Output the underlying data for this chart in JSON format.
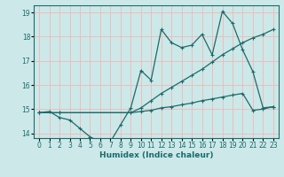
{
  "xlabel": "Humidex (Indice chaleur)",
  "bg_color": "#cde8e8",
  "grid_color": "#f0b8b8",
  "line_color": "#1a6b6b",
  "xlim": [
    -0.5,
    23.5
  ],
  "ylim": [
    13.8,
    19.3
  ],
  "xticks": [
    0,
    1,
    2,
    3,
    4,
    5,
    6,
    7,
    8,
    9,
    10,
    11,
    12,
    13,
    14,
    15,
    16,
    17,
    18,
    19,
    20,
    21,
    22,
    23
  ],
  "yticks": [
    14,
    15,
    16,
    17,
    18,
    19
  ],
  "line1_x": [
    0,
    1,
    2,
    3,
    4,
    5,
    6,
    7,
    8,
    9,
    10,
    11,
    12,
    13,
    14,
    15,
    16,
    17,
    18,
    19,
    20,
    21,
    22,
    23
  ],
  "line1_y": [
    14.85,
    14.9,
    14.65,
    14.55,
    14.2,
    13.85,
    13.65,
    13.65,
    14.35,
    15.05,
    16.6,
    16.2,
    18.3,
    17.75,
    17.55,
    17.65,
    18.1,
    17.25,
    19.05,
    18.55,
    17.45,
    16.55,
    15.05,
    15.1
  ],
  "line2_x": [
    0,
    2,
    9,
    10,
    11,
    12,
    13,
    14,
    15,
    16,
    17,
    18,
    19,
    20,
    21,
    22,
    23
  ],
  "line2_y": [
    14.85,
    14.85,
    14.85,
    15.05,
    15.35,
    15.65,
    15.9,
    16.15,
    16.4,
    16.65,
    16.95,
    17.25,
    17.5,
    17.75,
    17.95,
    18.1,
    18.3
  ],
  "line3_x": [
    0,
    2,
    9,
    10,
    11,
    12,
    13,
    14,
    15,
    16,
    17,
    18,
    19,
    20,
    21,
    22,
    23
  ],
  "line3_y": [
    14.85,
    14.85,
    14.85,
    14.9,
    14.95,
    15.05,
    15.1,
    15.18,
    15.25,
    15.35,
    15.42,
    15.5,
    15.58,
    15.65,
    14.95,
    15.0,
    15.1
  ]
}
